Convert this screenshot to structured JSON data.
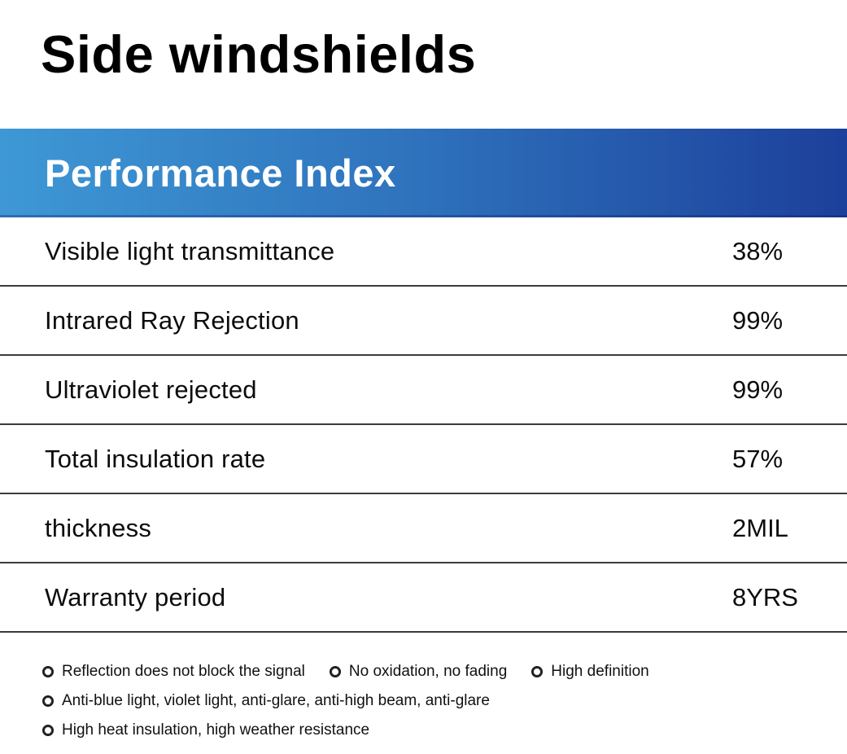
{
  "page": {
    "title": "Side windshields"
  },
  "banner": {
    "title": "Performance Index",
    "gradient_from": "#3E98D5",
    "gradient_mid": "#2F73BD",
    "gradient_to": "#1C409B",
    "text_color": "#FFFFFF"
  },
  "table": {
    "divider_color": "#3b3b3b",
    "rows": [
      {
        "label": "Visible light transmittance",
        "value": "38%"
      },
      {
        "label": "Intrared Ray Rejection",
        "value": "99%"
      },
      {
        "label": "Ultraviolet rejected",
        "value": "99%"
      },
      {
        "label": "Total insulation rate",
        "value": "57%"
      },
      {
        "label": "thickness",
        "value": "2MIL"
      },
      {
        "label": "Warranty period",
        "value": "8YRS"
      }
    ]
  },
  "features": {
    "icon": "double-ring-icon",
    "items": [
      {
        "text": "Reflection does not block the signal"
      },
      {
        "text": "No oxidation, no fading"
      },
      {
        "text": "High definition"
      },
      {
        "text": "Anti-blue light, violet light, anti-glare, anti-high beam, anti-glare"
      },
      {
        "text": "High heat insulation, high weather resistance"
      }
    ]
  }
}
